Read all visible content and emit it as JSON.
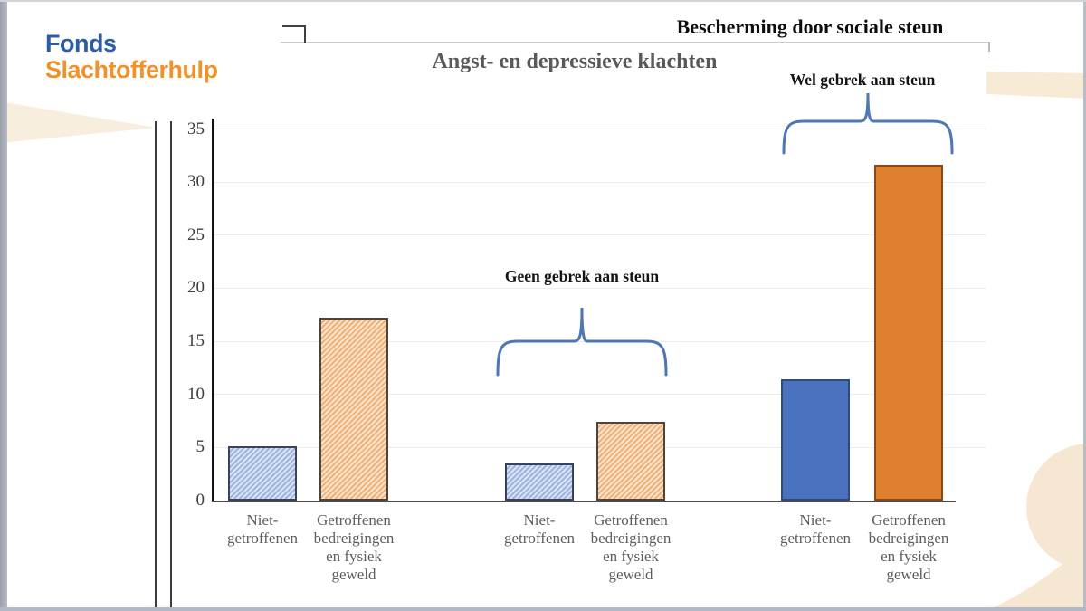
{
  "logo": {
    "line1": "Fonds",
    "line2": "Slachtofferhulp"
  },
  "header": {
    "title": "Bescherming door sociale steun"
  },
  "chart_data": {
    "type": "bar",
    "title": "Angst- en depressieve klachten",
    "xlabel": "",
    "ylabel": "",
    "ylim": [
      0,
      35
    ],
    "y_ticks": [
      0,
      5,
      10,
      15,
      20,
      25,
      30,
      35
    ],
    "grid": true,
    "legend_position": "none",
    "categories": [
      "Niet-getroffenen",
      "Getroffenen bedreigingen en fysiek geweld"
    ],
    "groups": [
      {
        "annotation": "",
        "bars": [
          {
            "label": "Niet-getroffenen",
            "value": 5.1,
            "style": "blue-pattern"
          },
          {
            "label": "Getroffenen bedreigingen en fysiek geweld",
            "value": 17.2,
            "style": "orange-pattern"
          }
        ]
      },
      {
        "annotation": "Geen gebrek aan steun",
        "bars": [
          {
            "label": "Niet-getroffenen",
            "value": 3.5,
            "style": "blue-pattern"
          },
          {
            "label": "Getroffenen bedreigingen en fysiek geweld",
            "value": 7.4,
            "style": "orange-pattern"
          }
        ]
      },
      {
        "annotation": "Wel gebrek aan steun",
        "bars": [
          {
            "label": "Niet-getroffenen",
            "value": 11.4,
            "style": "blue-solid"
          },
          {
            "label": "Getroffenen bedreigingen en fysiek geweld",
            "value": 31.6,
            "style": "orange-solid"
          }
        ]
      }
    ]
  },
  "colors": {
    "bar_blue": "#4a71bd",
    "bar_orange": "#e0802f",
    "brace_blue": "#4d77b5",
    "logo_blue": "#2a5caa",
    "logo_orange": "#f0922b",
    "beige_decoration": "#f5e7d1",
    "title_gray": "#595959"
  }
}
